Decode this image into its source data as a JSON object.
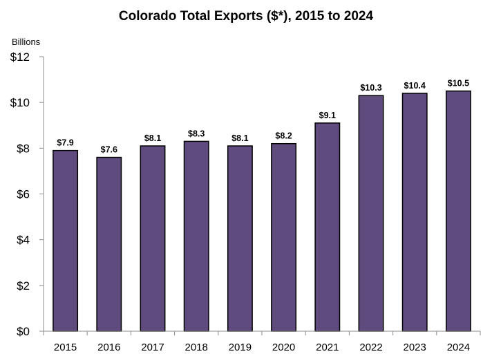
{
  "chart_data": {
    "type": "bar",
    "title": "Colorado Total Exports ($*), 2015 to 2024",
    "unit_label": "Billions",
    "xlabel": "",
    "ylabel": "",
    "categories": [
      "2015",
      "2016",
      "2017",
      "2018",
      "2019",
      "2020",
      "2021",
      "2022",
      "2023",
      "2024"
    ],
    "values": [
      7.9,
      7.6,
      8.1,
      8.3,
      8.1,
      8.2,
      9.1,
      10.3,
      10.4,
      10.5
    ],
    "data_labels": [
      "$7.9",
      "$7.6",
      "$8.1",
      "$8.3",
      "$8.1",
      "$8.2",
      "$9.1",
      "$10.3",
      "$10.4",
      "$10.5"
    ],
    "ylim": [
      0,
      12
    ],
    "yticks": [
      0,
      2,
      4,
      6,
      8,
      10,
      12
    ],
    "ytick_labels": [
      "$0",
      "$2",
      "$4",
      "$6",
      "$8",
      "$10",
      "$12"
    ],
    "grid": false,
    "legend": "none",
    "bar_color": "#5f4b7d",
    "bar_edge_color": "#000000"
  }
}
